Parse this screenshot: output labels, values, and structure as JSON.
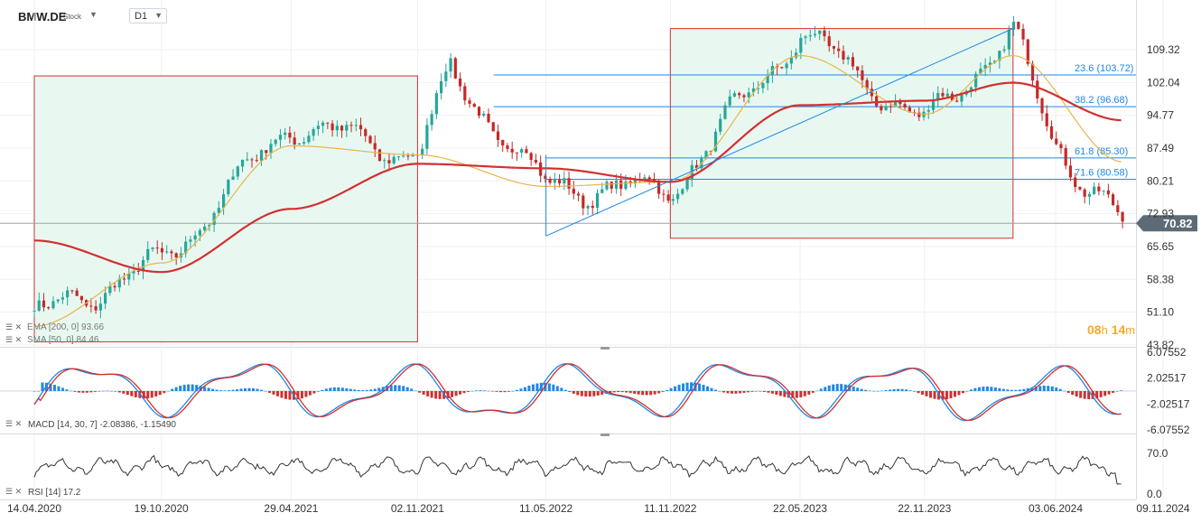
{
  "header": {
    "symbol": "BMW.DE",
    "instrument_type": "Stock",
    "timeframe": "D1"
  },
  "timer": {
    "hours": "08",
    "hours_unit": "h",
    "minutes": "14",
    "minutes_unit": "m"
  },
  "indicator_legends": {
    "ema": "EMA [200, 0] 93.66",
    "sma": "SMA [50, 0] 84.46",
    "macd": "MACD [14, 30, 7] -2.08386, -1.15490",
    "rsi": "RSI [14] 17.2"
  },
  "colors": {
    "candle_up": "#26a69a",
    "candle_down": "#c62828",
    "ema200": "#d32f2f",
    "sma50": "#e9b44c",
    "fib_line": "#1e88e5",
    "box_fill": "#e8f8f1",
    "box_stroke": "#d32f2f",
    "price_tag_bg": "#5d6b76",
    "macd_line": "#1e88e5",
    "signal_line": "#d32f2f",
    "timer": "#f7a823"
  },
  "chart_data": [
    {
      "type": "candlestick",
      "title": "",
      "x_ticks": [
        "14.04.2020",
        "19.10.2020",
        "29.04.2021",
        "02.11.2021",
        "11.05.2022",
        "11.11.2022",
        "22.05.2023",
        "22.11.2023",
        "03.06.2024",
        "09.11.2024"
      ],
      "y_ticks": [
        "109.32",
        "102.04",
        "94.77",
        "87.49",
        "80.21",
        "72.93",
        "65.65",
        "58.38",
        "51.10",
        "43.82"
      ],
      "ylim": [
        43.82,
        113.0
      ],
      "current_price": "70.82",
      "anchors": [
        {
          "date": "14.04.2020",
          "close": 50
        },
        {
          "date": "19.10.2020",
          "close": 62
        },
        {
          "date": "29.04.2021",
          "close": 93
        },
        {
          "date": "02.11.2021",
          "close": 86
        },
        {
          "date": "20.12.2021",
          "close": 104
        },
        {
          "date": "11.05.2022",
          "close": 79
        },
        {
          "date": "11.11.2022",
          "close": 78
        },
        {
          "date": "22.05.2023",
          "close": 113
        },
        {
          "date": "22.11.2023",
          "close": 93
        },
        {
          "date": "01.04.2024",
          "close": 113
        },
        {
          "date": "03.06.2024",
          "close": 88
        },
        {
          "date": "10.09.2024",
          "close": 71
        }
      ],
      "ema200_anchors": [
        {
          "date": "14.04.2020",
          "value": 67
        },
        {
          "date": "19.10.2020",
          "value": 60
        },
        {
          "date": "29.04.2021",
          "value": 74
        },
        {
          "date": "02.11.2021",
          "value": 84
        },
        {
          "date": "11.05.2022",
          "value": 83
        },
        {
          "date": "11.11.2022",
          "value": 80
        },
        {
          "date": "22.05.2023",
          "value": 97
        },
        {
          "date": "22.11.2023",
          "value": 98
        },
        {
          "date": "01.04.2024",
          "value": 102
        },
        {
          "date": "10.09.2024",
          "value": 93.66
        }
      ],
      "sma50_anchors": [
        {
          "date": "14.04.2020",
          "value": 48
        },
        {
          "date": "19.10.2020",
          "value": 62
        },
        {
          "date": "29.04.2021",
          "value": 88
        },
        {
          "date": "02.11.2021",
          "value": 86
        },
        {
          "date": "11.05.2022",
          "value": 79
        },
        {
          "date": "11.11.2022",
          "value": 80
        },
        {
          "date": "22.05.2023",
          "value": 108
        },
        {
          "date": "22.11.2023",
          "value": 95
        },
        {
          "date": "01.04.2024",
          "value": 108
        },
        {
          "date": "10.09.2024",
          "value": 84.46
        }
      ],
      "fibonacci_levels": [
        {
          "label": "23.6 (103.72)",
          "value": 103.72
        },
        {
          "label": "38.2 (96.68)",
          "value": 96.68
        },
        {
          "label": "61.8 (85.30)",
          "value": 85.3
        },
        {
          "label": "71.6 (80.58)",
          "value": 80.58
        }
      ],
      "highlight_boxes": [
        {
          "from": "14.04.2020",
          "to": "02.11.2021",
          "low": 44.5,
          "high": 103.5
        },
        {
          "from": "11.11.2022",
          "to": "01.04.2024",
          "low": 67.5,
          "high": 114
        }
      ],
      "trend_lines": [
        {
          "from_date": "11.05.2022",
          "from_value": 68.0,
          "to_date": "01.04.2024",
          "to_value": 114.0
        },
        {
          "from_date": "11.05.2022",
          "from_value": 68.0,
          "to_date": "11.05.2022",
          "to_value": 86.0
        }
      ]
    },
    {
      "type": "bar+line",
      "title": "",
      "series": [
        {
          "name": "MACD [14, 30, 7]"
        }
      ],
      "y_ticks": [
        "6.07552",
        "2.02517",
        "-2.02517",
        "-6.07552"
      ],
      "ylim": [
        -6.07552,
        6.07552
      ],
      "last_values": [
        -2.08386,
        -1.1549
      ]
    },
    {
      "type": "line",
      "title": "",
      "series": [
        {
          "name": "RSI [14]"
        }
      ],
      "y_ticks": [
        "70.0",
        "0.0"
      ],
      "ylim": [
        0,
        80
      ],
      "last_value": 17.2
    }
  ]
}
